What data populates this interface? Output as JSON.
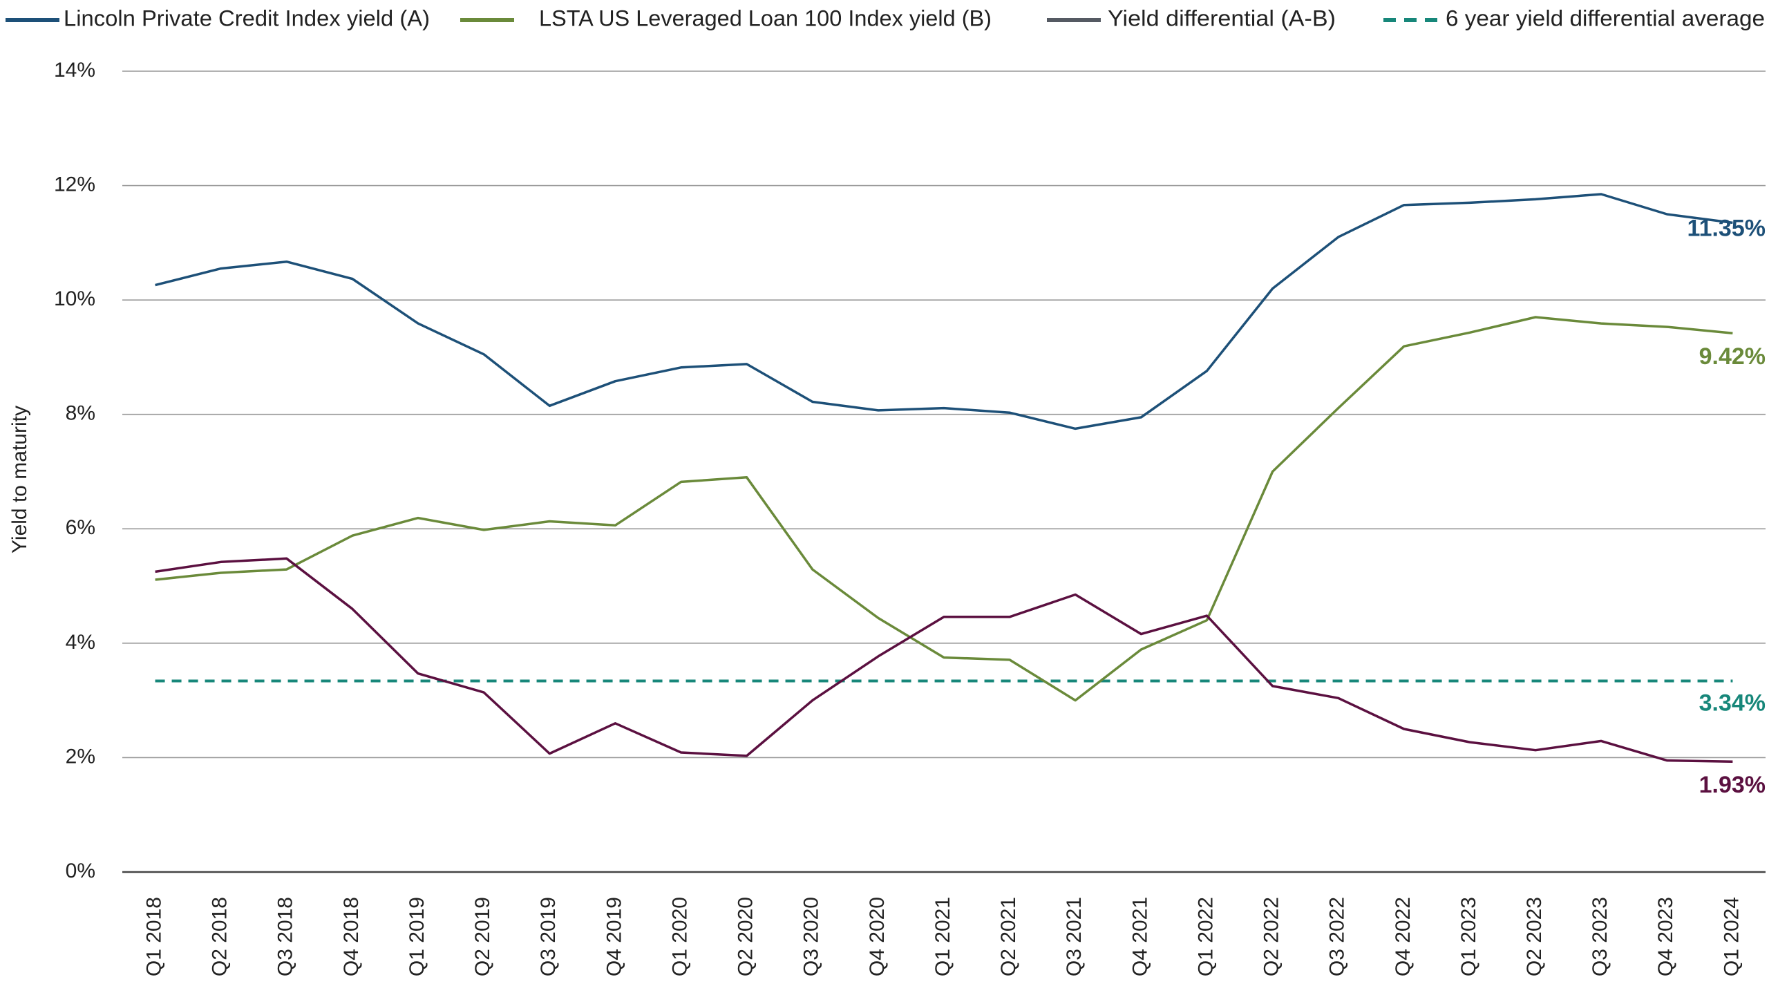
{
  "chart_data": {
    "type": "line",
    "y_label": "Yield to maturity",
    "categories": [
      "Q1 2018",
      "Q2 2018",
      "Q3 2018",
      "Q4 2018",
      "Q1 2019",
      "Q2 2019",
      "Q3 2019",
      "Q4 2019",
      "Q1 2020",
      "Q2 2020",
      "Q3 2020",
      "Q4 2020",
      "Q1 2021",
      "Q2 2021",
      "Q3 2021",
      "Q4 2021",
      "Q1 2022",
      "Q2 2022",
      "Q3 2022",
      "Q4 2022",
      "Q1 2023",
      "Q2 2023",
      "Q3 2023",
      "Q4 2023",
      "Q1 2024"
    ],
    "ylim": [
      0,
      14
    ],
    "yticks": [
      {
        "value": 0,
        "label": "0%"
      },
      {
        "value": 2,
        "label": "2%"
      },
      {
        "value": 4,
        "label": "4%"
      },
      {
        "value": 6,
        "label": "6%"
      },
      {
        "value": 8,
        "label": "8%"
      },
      {
        "value": 10,
        "label": "10%"
      },
      {
        "value": 12,
        "label": "12%"
      },
      {
        "value": 14,
        "label": "14%"
      }
    ],
    "grid": true,
    "legend": "top",
    "series": [
      {
        "name": "Lincoln Private Credit Index yield (A)",
        "color": "#1d5078",
        "values": [
          10.26,
          10.55,
          10.67,
          10.37,
          9.59,
          9.05,
          8.15,
          8.58,
          8.82,
          8.88,
          8.22,
          8.07,
          8.11,
          8.03,
          7.75,
          7.95,
          8.76,
          10.2,
          11.1,
          11.66,
          11.7,
          11.76,
          11.85,
          11.5,
          11.35
        ],
        "value_labels": [
          null,
          null,
          null,
          null,
          null,
          null,
          null,
          null,
          null,
          null,
          null,
          null,
          null,
          null,
          null,
          null,
          null,
          null,
          null,
          null,
          null,
          null,
          null,
          null,
          "11.35%"
        ]
      },
      {
        "name": "LSTA US Leveraged Loan 100 Index yield (B)",
        "color": "#6a8a3a",
        "values": [
          5.11,
          5.23,
          5.29,
          5.88,
          6.19,
          5.98,
          6.13,
          6.06,
          6.82,
          6.9,
          5.29,
          4.44,
          3.75,
          3.71,
          3.0,
          3.89,
          4.4,
          7.0,
          8.11,
          9.19,
          9.43,
          9.7,
          9.59,
          9.53,
          9.42
        ],
        "value_labels": [
          null,
          null,
          null,
          null,
          null,
          null,
          null,
          null,
          null,
          null,
          null,
          null,
          null,
          null,
          null,
          null,
          null,
          null,
          null,
          null,
          null,
          null,
          null,
          null,
          "9.42%"
        ]
      },
      {
        "name": "Yield differential (A-B)",
        "color": "#5b1040",
        "legend_color": "#555a63",
        "values": [
          5.25,
          5.42,
          5.48,
          4.6,
          3.47,
          3.14,
          2.07,
          2.6,
          2.09,
          2.03,
          3.0,
          3.77,
          4.46,
          4.46,
          4.85,
          4.16,
          4.48,
          3.25,
          3.04,
          2.5,
          2.27,
          2.13,
          2.29,
          1.95,
          1.93
        ],
        "value_labels": [
          null,
          null,
          null,
          null,
          null,
          null,
          null,
          null,
          null,
          null,
          null,
          null,
          null,
          null,
          null,
          null,
          null,
          null,
          null,
          null,
          null,
          null,
          null,
          null,
          "1.93%"
        ]
      }
    ],
    "reference_line": {
      "name": "6 year yield differential average",
      "color": "#17877a",
      "dashed": true,
      "value": 3.34,
      "value_label": "3.34%"
    }
  }
}
